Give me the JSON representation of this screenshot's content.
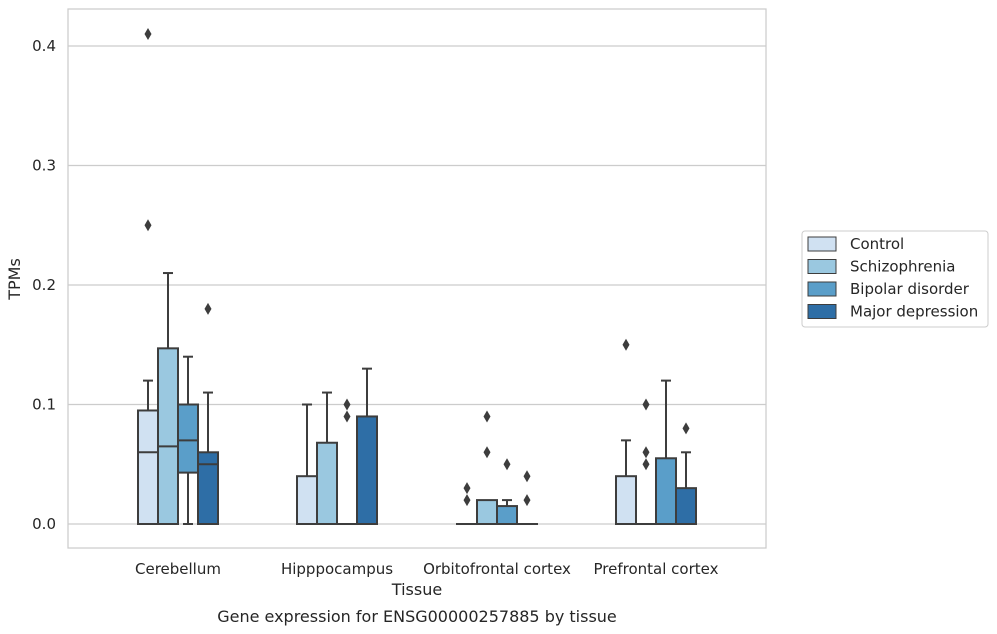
{
  "caption": "Gene expression for ENSG00000257885 by tissue",
  "chart_data": {
    "type": "box",
    "xlabel": "Tissue",
    "ylabel": "TPMs",
    "ylim": [
      -0.02,
      0.43
    ],
    "yticks": [
      "0.0",
      "0.1",
      "0.2",
      "0.3",
      "0.4"
    ],
    "grid": "horizontal",
    "legend_position": "right",
    "categories": [
      "Cerebellum",
      "Hipppocampus",
      "Orbitofrontal cortex",
      "Prefrontal cortex"
    ],
    "series": [
      {
        "name": "Control",
        "color": "#d0e1f2",
        "boxes": [
          {
            "q1": 0.0,
            "median": 0.06,
            "q3": 0.095,
            "whisker_low": 0.0,
            "whisker_high": 0.12,
            "outliers": [
              0.41,
              0.25
            ]
          },
          {
            "q1": 0.0,
            "median": 0.0,
            "q3": 0.04,
            "whisker_low": 0.0,
            "whisker_high": 0.1,
            "outliers": []
          },
          {
            "q1": 0.0,
            "median": 0.0,
            "q3": 0.0,
            "whisker_low": 0.0,
            "whisker_high": 0.0,
            "outliers": [
              0.03,
              0.02
            ]
          },
          {
            "q1": 0.0,
            "median": 0.0,
            "q3": 0.04,
            "whisker_low": 0.0,
            "whisker_high": 0.07,
            "outliers": [
              0.15
            ]
          }
        ]
      },
      {
        "name": "Schizophrenia",
        "color": "#9ac8e0",
        "boxes": [
          {
            "q1": 0.0,
            "median": 0.065,
            "q3": 0.147,
            "whisker_low": 0.0,
            "whisker_high": 0.21,
            "outliers": []
          },
          {
            "q1": 0.0,
            "median": 0.0,
            "q3": 0.068,
            "whisker_low": 0.0,
            "whisker_high": 0.11,
            "outliers": []
          },
          {
            "q1": 0.0,
            "median": 0.0,
            "q3": 0.02,
            "whisker_low": 0.0,
            "whisker_high": 0.02,
            "outliers": [
              0.09,
              0.06
            ]
          },
          {
            "q1": 0.0,
            "median": 0.0,
            "q3": 0.0,
            "whisker_low": 0.0,
            "whisker_high": 0.0,
            "outliers": [
              0.1,
              0.06,
              0.05
            ]
          }
        ]
      },
      {
        "name": "Bipolar disorder",
        "color": "#5a9ec9",
        "boxes": [
          {
            "q1": 0.043,
            "median": 0.07,
            "q3": 0.1,
            "whisker_low": 0.0,
            "whisker_high": 0.14,
            "outliers": []
          },
          {
            "q1": 0.0,
            "median": 0.0,
            "q3": 0.0,
            "whisker_low": 0.0,
            "whisker_high": 0.0,
            "outliers": [
              0.1,
              0.09
            ]
          },
          {
            "q1": 0.0,
            "median": 0.0,
            "q3": 0.015,
            "whisker_low": 0.0,
            "whisker_high": 0.02,
            "outliers": [
              0.05
            ]
          },
          {
            "q1": 0.0,
            "median": 0.0,
            "q3": 0.055,
            "whisker_low": 0.0,
            "whisker_high": 0.12,
            "outliers": []
          }
        ]
      },
      {
        "name": "Major depression",
        "color": "#2e6ea6",
        "boxes": [
          {
            "q1": 0.0,
            "median": 0.05,
            "q3": 0.06,
            "whisker_low": 0.0,
            "whisker_high": 0.11,
            "outliers": [
              0.18
            ]
          },
          {
            "q1": 0.0,
            "median": 0.0,
            "q3": 0.09,
            "whisker_low": 0.0,
            "whisker_high": 0.13,
            "outliers": []
          },
          {
            "q1": 0.0,
            "median": 0.0,
            "q3": 0.0,
            "whisker_low": 0.0,
            "whisker_high": 0.0,
            "outliers": [
              0.04,
              0.02
            ]
          },
          {
            "q1": 0.0,
            "median": 0.0,
            "q3": 0.03,
            "whisker_low": 0.0,
            "whisker_high": 0.06,
            "outliers": [
              0.08
            ]
          }
        ]
      }
    ]
  }
}
